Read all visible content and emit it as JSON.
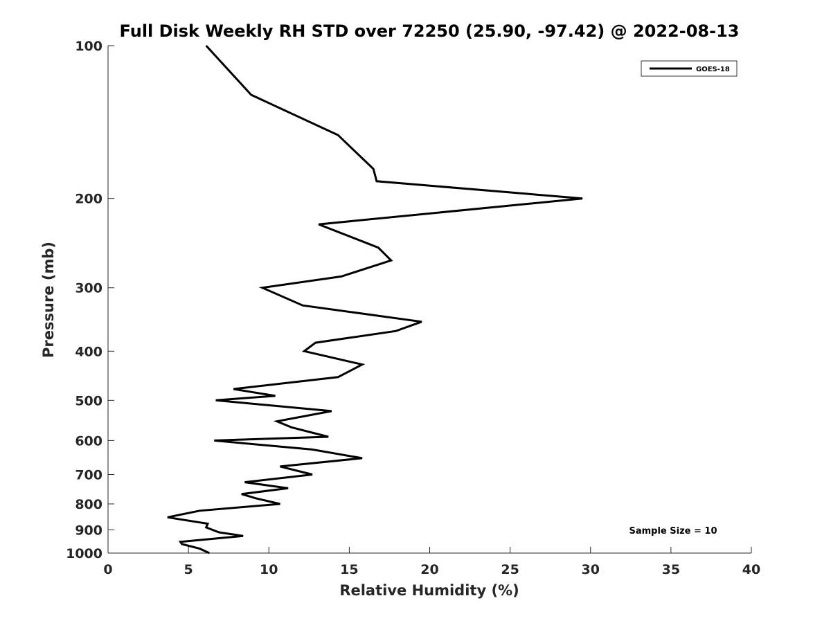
{
  "chart_data": {
    "type": "line",
    "title": "Full Disk Weekly RH STD over 72250 (25.90, -97.42) @ 2022-08-13",
    "xlabel": "Relative Humidity (%)",
    "ylabel": "Pressure (mb)",
    "xlim": [
      0,
      40
    ],
    "ylim": [
      1000,
      100
    ],
    "yscale": "log",
    "xticks": [
      0,
      5,
      10,
      15,
      20,
      25,
      30,
      35,
      40
    ],
    "yticks": [
      100,
      200,
      300,
      400,
      500,
      600,
      700,
      800,
      900,
      1000
    ],
    "grid": false,
    "legend_position": "top-right",
    "annotation": "Sample Size = 10",
    "series": [
      {
        "name": "GOES-18",
        "color": "#000000",
        "x": [
          6.1,
          8.9,
          14.3,
          16.5,
          16.7,
          29.5,
          13.1,
          16.8,
          17.6,
          14.5,
          9.6,
          12.1,
          19.5,
          17.9,
          12.9,
          12.2,
          15.8,
          14.3,
          7.8,
          10.4,
          6.7,
          13.9,
          10.5,
          11.4,
          13.7,
          6.6,
          12.7,
          15.8,
          10.7,
          12.7,
          8.5,
          11.2,
          8.3,
          9.2,
          10.7,
          5.7,
          3.7,
          6.2,
          6.1,
          6.9,
          8.4,
          4.5,
          4.6,
          5.7,
          6.3
        ],
        "y": [
          100,
          125,
          150,
          175,
          185,
          200,
          225,
          250,
          265,
          285,
          300,
          325,
          350,
          365,
          385,
          400,
          425,
          450,
          475,
          490,
          500,
          525,
          550,
          565,
          590,
          600,
          625,
          650,
          675,
          700,
          725,
          745,
          765,
          780,
          800,
          825,
          850,
          875,
          890,
          910,
          925,
          950,
          960,
          980,
          1000
        ]
      }
    ]
  }
}
